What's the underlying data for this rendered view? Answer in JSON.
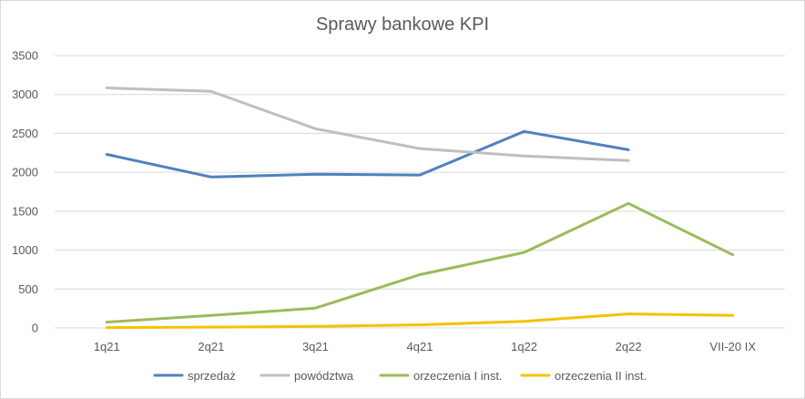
{
  "chart_data": {
    "type": "line",
    "title": "Sprawy bankowe KPI",
    "xlabel": "",
    "ylabel": "",
    "categories": [
      "1q21",
      "2q21",
      "3q21",
      "4q21",
      "1q22",
      "2q22",
      "VII-20 IX"
    ],
    "ylim": [
      0,
      3500
    ],
    "yticks": [
      0,
      500,
      1000,
      1500,
      2000,
      2500,
      3000,
      3500
    ],
    "grid": true,
    "legend": "bottom",
    "series": [
      {
        "name": "sprzedaż",
        "color": "#4f81bd",
        "values": [
          2230,
          1940,
          1975,
          1965,
          2525,
          2290,
          null
        ]
      },
      {
        "name": "powództwa",
        "color": "#bfbfbf",
        "values": [
          3085,
          3040,
          2560,
          2305,
          2210,
          2150,
          null
        ]
      },
      {
        "name": "orzeczenia I inst.",
        "color": "#9bbb59",
        "values": [
          75,
          160,
          255,
          685,
          970,
          1600,
          940
        ]
      },
      {
        "name": "orzeczenia II inst.",
        "color": "#f5c200",
        "values": [
          5,
          10,
          20,
          40,
          85,
          180,
          160
        ]
      }
    ]
  }
}
